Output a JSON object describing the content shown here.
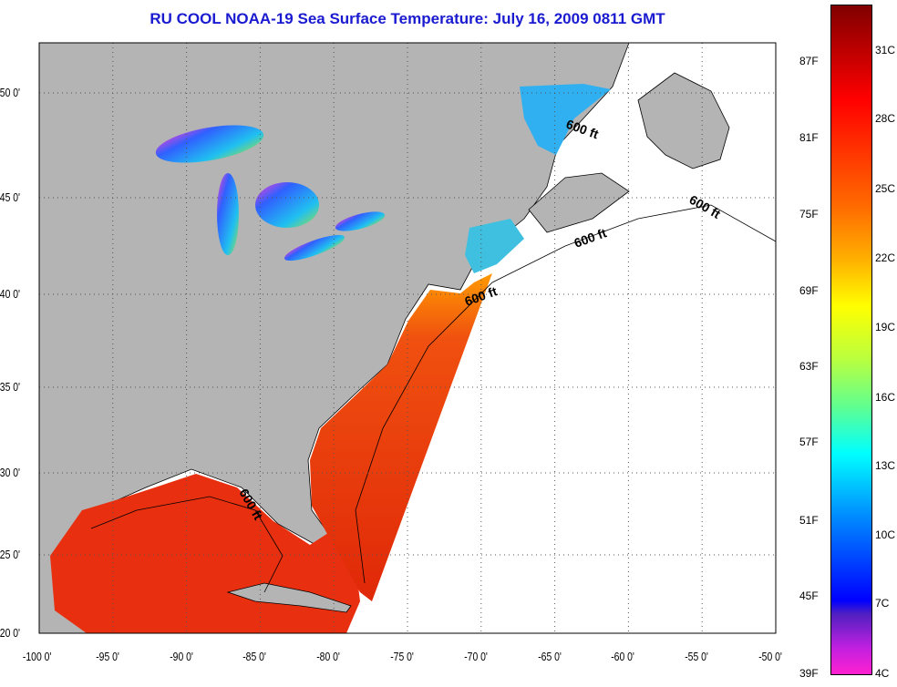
{
  "title": "RU COOL  NOAA-19  Sea Surface Temperature:  July 16, 2009 0811 GMT",
  "map": {
    "lon_labels": [
      "-100 0'",
      "-95 0'",
      "-90 0'",
      "-85 0'",
      "-80 0'",
      "-75 0'",
      "-70 0'",
      "-65 0'",
      "-60 0'",
      "-55 0'",
      "-50 0'"
    ],
    "lon_values": [
      -100,
      -95,
      -90,
      -85,
      -80,
      -75,
      -70,
      -65,
      -60,
      -55,
      -50
    ],
    "lat_labels": [
      "20 0'",
      "25 0'",
      "30 0'",
      "35 0'",
      "40 0'",
      "45 0'",
      "50 0'"
    ],
    "lat_values": [
      20,
      25,
      30,
      35,
      40,
      45,
      50
    ],
    "contour_labels": [
      "600 ft",
      "600 ft",
      "600 ft",
      "600 ft",
      "600 ft"
    ],
    "colors": {
      "land": "#b4b4b4",
      "ocean_nodata": "#ffffff",
      "warm": "#e8320c",
      "cool": "#2aa0f0"
    }
  },
  "colorbar": {
    "fahrenheit": [
      "87F",
      "81F",
      "75F",
      "69F",
      "63F",
      "57F",
      "51F",
      "45F",
      "39F"
    ],
    "celsius": [
      "31C",
      "28C",
      "25C",
      "22C",
      "19C",
      "16C",
      "13C",
      "10C",
      "7C",
      "4C"
    ]
  }
}
